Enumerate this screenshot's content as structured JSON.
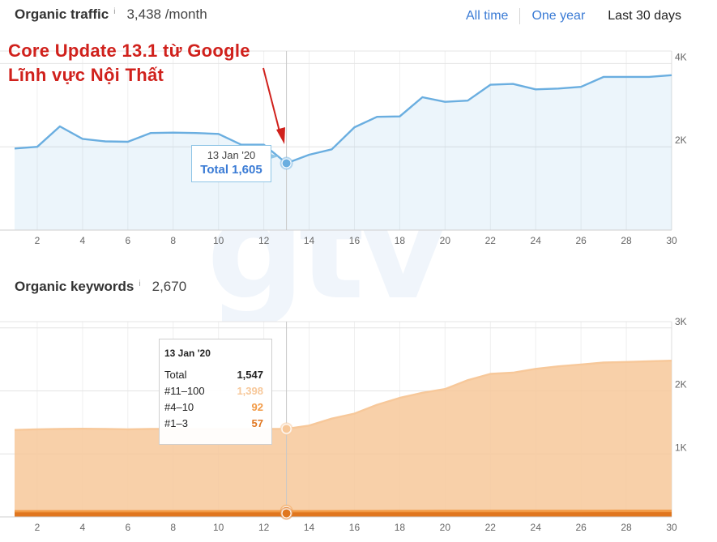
{
  "traffic": {
    "title": "Organic traffic",
    "info": "i",
    "value": "3,438 /month",
    "range_tabs": [
      "All time",
      "One year",
      "Last 30 days"
    ],
    "annotation_lines": [
      "Core Update 13.1 từ Google",
      "Lĩnh vực Nội Thất"
    ],
    "tooltip": {
      "date": "13 Jan '20",
      "total": "Total 1,605"
    }
  },
  "keywords": {
    "title": "Organic keywords",
    "info": "i",
    "value": "2,670",
    "tooltip": {
      "date": "13 Jan '20",
      "rows": [
        {
          "label": "Total",
          "value": "1,547",
          "color": "#222222"
        },
        {
          "label": "#11–100",
          "value": "1,398",
          "color": "#f7c89a"
        },
        {
          "label": "#4–10",
          "value": "92",
          "color": "#f29a45"
        },
        {
          "label": "#1–3",
          "value": "57",
          "color": "#e0761f"
        }
      ]
    }
  },
  "watermark": "gtv",
  "chart_data": [
    {
      "type": "area",
      "title": "Organic traffic",
      "x": [
        1,
        2,
        3,
        4,
        5,
        6,
        7,
        8,
        9,
        10,
        11,
        12,
        13,
        14,
        15,
        16,
        17,
        18,
        19,
        20,
        21,
        22,
        23,
        24,
        25,
        26,
        27,
        28,
        29,
        30
      ],
      "x_ticks": [
        2,
        4,
        6,
        8,
        10,
        12,
        14,
        16,
        18,
        20,
        22,
        24,
        26,
        28,
        30
      ],
      "y_ticks": [
        "2K",
        "4K"
      ],
      "ylim": [
        0,
        4300
      ],
      "series": [
        {
          "name": "Total",
          "color": "#6aaee0",
          "values": [
            1960,
            2000,
            2490,
            2190,
            2130,
            2120,
            2330,
            2340,
            2330,
            2310,
            2050,
            2050,
            1605,
            1810,
            1940,
            2470,
            2720,
            2730,
            3190,
            3080,
            3110,
            3490,
            3510,
            3380,
            3400,
            3440,
            3680,
            3680,
            3680,
            3720
          ]
        }
      ],
      "highlight": {
        "x": 13,
        "label": "13 Jan '20",
        "value": 1605
      },
      "grid": true
    },
    {
      "type": "area",
      "title": "Organic keywords",
      "x": [
        1,
        2,
        3,
        4,
        5,
        6,
        7,
        8,
        9,
        10,
        11,
        12,
        13,
        14,
        15,
        16,
        17,
        18,
        19,
        20,
        21,
        22,
        23,
        24,
        25,
        26,
        27,
        28,
        29,
        30
      ],
      "x_ticks": [
        2,
        4,
        6,
        8,
        10,
        12,
        14,
        16,
        18,
        20,
        22,
        24,
        26,
        28,
        30
      ],
      "y_ticks": [
        "1K",
        "2K",
        "3K"
      ],
      "ylim": [
        0,
        3100
      ],
      "series": [
        {
          "name": "#11–100",
          "color": "#f7c89a",
          "values": [
            1380,
            1390,
            1395,
            1400,
            1395,
            1390,
            1395,
            1395,
            1395,
            1395,
            1395,
            1395,
            1398,
            1450,
            1560,
            1640,
            1780,
            1890,
            1970,
            2030,
            2170,
            2270,
            2290,
            2350,
            2390,
            2420,
            2450,
            2460,
            2470,
            2480
          ]
        },
        {
          "name": "#4–10",
          "color": "#f29a45",
          "values": [
            93,
            93,
            92,
            92,
            92,
            92,
            92,
            92,
            92,
            92,
            92,
            92,
            92,
            93,
            93,
            94,
            94,
            95,
            95,
            96,
            96,
            97,
            97,
            97,
            98,
            98,
            98,
            99,
            99,
            99
          ]
        },
        {
          "name": "#1–3",
          "color": "#e0761f",
          "values": [
            57,
            57,
            57,
            57,
            57,
            57,
            57,
            57,
            57,
            57,
            57,
            57,
            57,
            57,
            58,
            58,
            58,
            58,
            58,
            59,
            59,
            59,
            59,
            59,
            59,
            59,
            60,
            60,
            60,
            60
          ]
        }
      ],
      "highlight": {
        "x": 13,
        "label": "13 Jan '20"
      },
      "grid": true
    }
  ]
}
